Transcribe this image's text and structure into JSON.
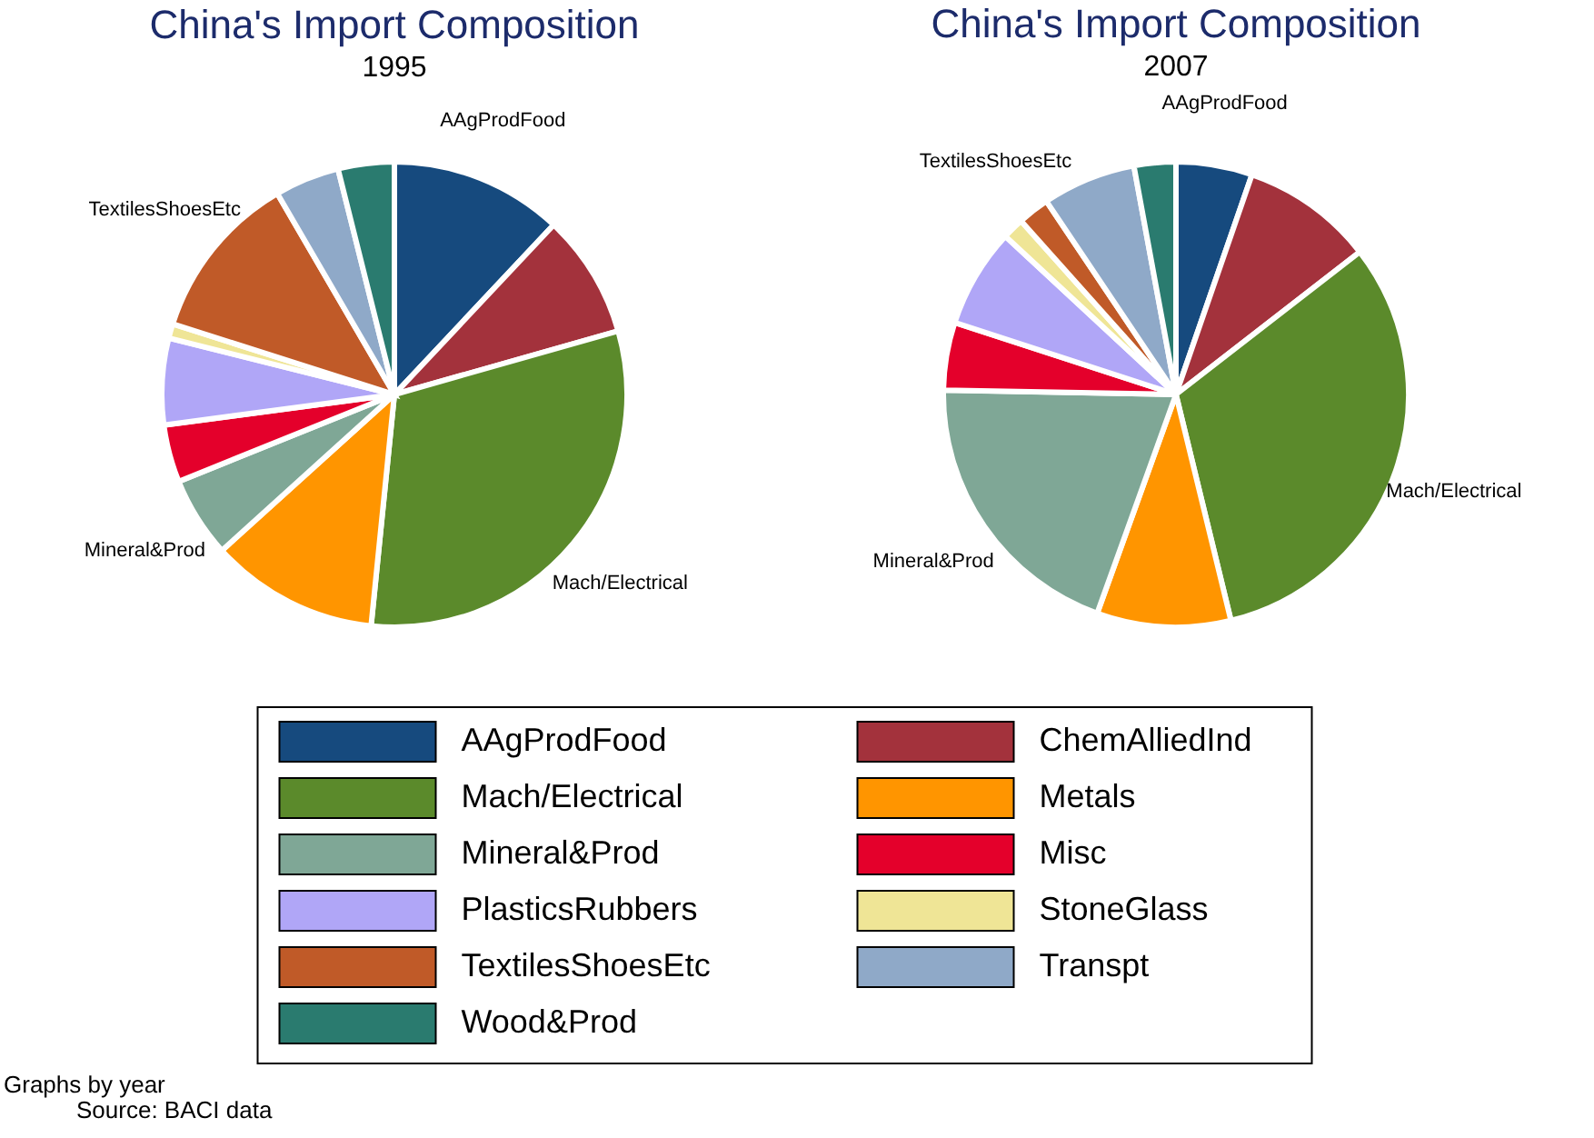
{
  "chart_data": [
    {
      "type": "pie",
      "title": "China's Import Composition",
      "subtitle": "1995",
      "categories": [
        "AAgProdFood",
        "ChemAlliedInd",
        "Mach/Electrical",
        "Metals",
        "Mineral&Prod",
        "Misc",
        "PlasticsRubbers",
        "StoneGlass",
        "TextilesShoesEtc",
        "Transpt",
        "Wood&Prod"
      ],
      "values": [
        12,
        8.6,
        31,
        11.7,
        5.6,
        4,
        6,
        1,
        11.7,
        4.5,
        3.9
      ],
      "colors": [
        "#164a7e",
        "#a3323c",
        "#5b8a2b",
        "#ff9500",
        "#7fa796",
        "#e4002b",
        "#b0a6f7",
        "#efe596",
        "#c05a28",
        "#8fa9c8",
        "#2a7b6f"
      ],
      "annotations": [
        {
          "text": "AAgProdFood",
          "x": "AAgProdFood"
        },
        {
          "text": "Mach/Electrical",
          "x": "Mach/Electrical"
        },
        {
          "text": "Mineral&Prod",
          "x": "Mineral&Prod"
        },
        {
          "text": "TextilesShoesEtc",
          "x": "TextilesShoesEtc"
        },
        "Graphs by year",
        "Source: BACI data"
      ],
      "legend": "bottom"
    },
    {
      "type": "pie",
      "title": "China's Import Composition",
      "subtitle": "2007",
      "categories": [
        "AAgProdFood",
        null,
        "Mach/Electrical",
        null,
        "Mineral&Prod",
        null,
        null,
        null,
        "TextilesShoesEtc",
        null,
        null
      ],
      "values": [
        5.3,
        9.2,
        31.7,
        9.3,
        19.8,
        4.7,
        6.9,
        1.5,
        2.2,
        6.5,
        2.9
      ],
      "colors": [
        "#164a7e",
        "#a3323c",
        "#5b8a2b",
        "#ff9500",
        "#7fa796",
        "#e4002b",
        "#b0a6f7",
        "#efe596",
        "#c05a28",
        "#8fa9c8",
        "#2a7b6f"
      ]
    }
  ]
}
